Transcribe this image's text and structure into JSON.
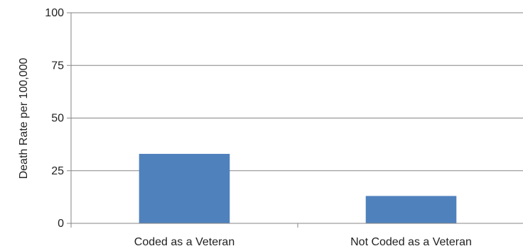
{
  "chart_data": {
    "type": "bar",
    "title": "",
    "xlabel": "",
    "ylabel": "Death Rate per 100,000",
    "categories": [
      "Coded as a Veteran",
      "Not Coded as a Veteran"
    ],
    "values": [
      33,
      13
    ],
    "ylim": [
      0,
      100
    ],
    "yticks": [
      0,
      25,
      50,
      75,
      100
    ],
    "ytick_labels": [
      "0",
      "25",
      "50",
      "75",
      "100"
    ],
    "grid": true,
    "legend": "none",
    "bar_color": "#4F81BD",
    "grid_color": "#868686"
  }
}
